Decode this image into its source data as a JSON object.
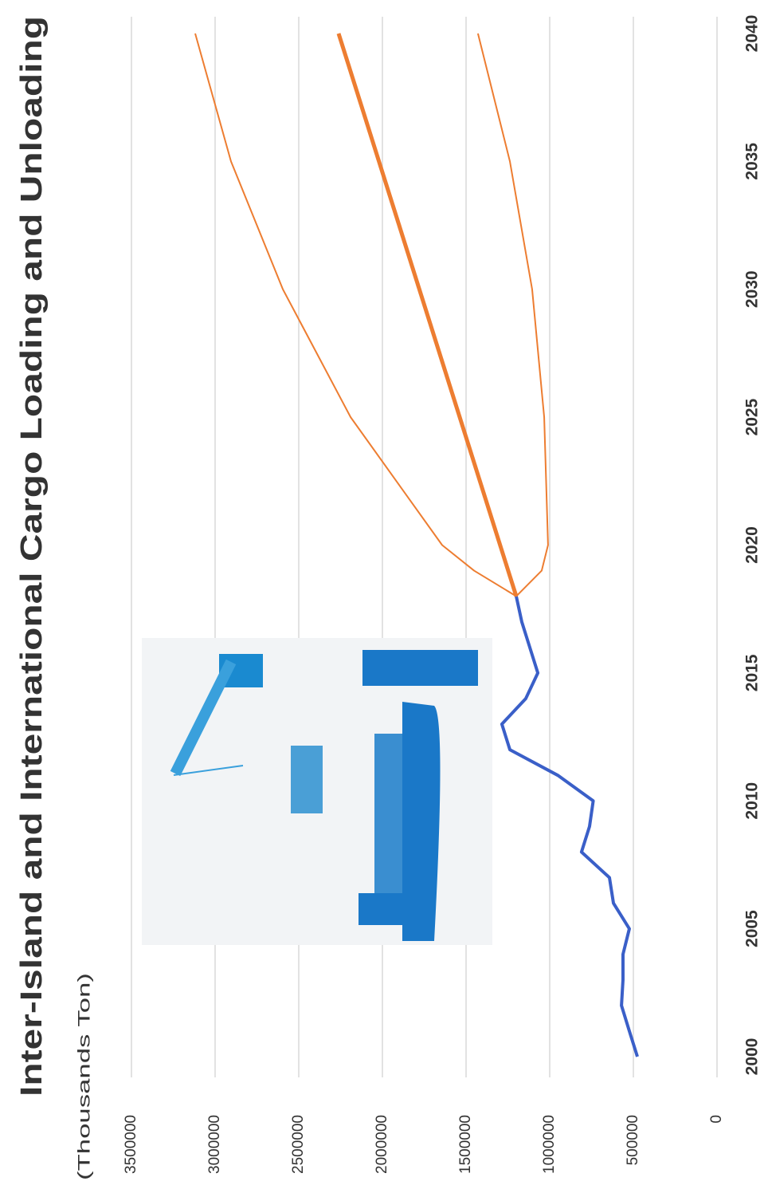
{
  "chart_data": {
    "type": "line",
    "title": "Inter-Island and International Cargo Loading and Unloading",
    "y_label": "(Thousands  Ton)",
    "xlim": [
      2000,
      2040
    ],
    "xticks": [
      2000,
      2005,
      2010,
      2015,
      2020,
      2025,
      2030,
      2035,
      2040
    ],
    "ylim": [
      0,
      3500000
    ],
    "yticks": [
      0,
      500000,
      1000000,
      1500000,
      2000000,
      2500000,
      3000000,
      3500000
    ],
    "grid": true,
    "series": [
      {
        "color": "#3a5fc8",
        "x": [
          2000,
          2001,
          2002,
          2003,
          2004,
          2005,
          2006,
          2007,
          2008,
          2009,
          2010,
          2011,
          2012,
          2013,
          2014,
          2015,
          2016,
          2017,
          2018
        ],
        "values": [
          476000,
          524000,
          571000,
          562000,
          562000,
          524000,
          619000,
          643000,
          810000,
          762000,
          740000,
          952000,
          1238000,
          1286000,
          1143000,
          1071000,
          1119000,
          1167000,
          1200000
        ]
      },
      {
        "color": "#ed7d31",
        "x": [
          2018,
          2040
        ],
        "values": [
          1200000,
          2262000
        ]
      },
      {
        "color": "#ed7d31",
        "x": [
          2018,
          2019,
          2020,
          2025,
          2030,
          2035,
          2040
        ],
        "values": [
          1200000,
          1452000,
          1643000,
          2190000,
          2595000,
          2905000,
          3119000
        ]
      },
      {
        "color": "#ed7d31",
        "x": [
          2018,
          2019,
          2020,
          2025,
          2030,
          2035,
          2040
        ],
        "values": [
          1200000,
          1048000,
          1010000,
          1033000,
          1105000,
          1238000,
          1429000
        ]
      }
    ]
  }
}
